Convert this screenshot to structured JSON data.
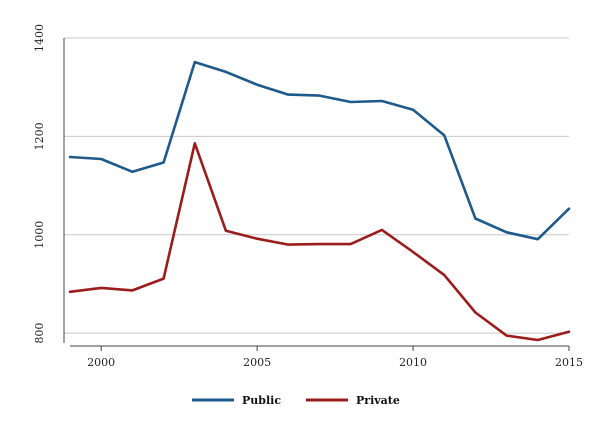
{
  "chart_data": {
    "type": "line",
    "title": "",
    "xlabel": "",
    "ylabel": "",
    "x": [
      1999,
      2000,
      2001,
      2002,
      2003,
      2004,
      2005,
      2006,
      2007,
      2008,
      2009,
      2010,
      2011,
      2012,
      2013,
      2014,
      2015
    ],
    "xlim": [
      1999,
      2015
    ],
    "ylim": [
      780,
      1400
    ],
    "x_ticks": [
      2000,
      2005,
      2010,
      2015
    ],
    "x_tick_labels": [
      "2000",
      "2005",
      "2010",
      "2015"
    ],
    "y_ticks": [
      800,
      1000,
      1200,
      1400
    ],
    "y_tick_labels": [
      "800",
      "1000",
      "1200",
      "1400"
    ],
    "grid": "horizontal",
    "legend_position": "bottom",
    "series": [
      {
        "name": "Public",
        "color": "#1f5a8c",
        "values": [
          1158,
          1154,
          1128,
          1147,
          1351,
          1331,
          1305,
          1285,
          1283,
          1270,
          1272,
          1254,
          1202,
          1033,
          1005,
          991,
          1053
        ]
      },
      {
        "name": "Private",
        "color": "#9c1c1c",
        "values": [
          884,
          892,
          887,
          911,
          1186,
          1008,
          992,
          980,
          981,
          981,
          1010,
          965,
          918,
          842,
          795,
          786,
          803
        ]
      }
    ]
  }
}
